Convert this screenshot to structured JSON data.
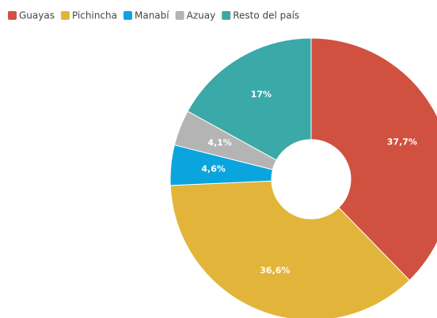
{
  "chart_data": {
    "type": "pie",
    "donut": true,
    "legend": "top-left",
    "categories": [
      "Guayas",
      "Pichincha",
      "Manabí",
      "Azuay",
      "Resto del país"
    ],
    "values": [
      37.7,
      36.6,
      4.6,
      4.1,
      17
    ],
    "value_labels": [
      "37,7%",
      "36,6%",
      "4,6%",
      "4,1%",
      "17%"
    ],
    "colors": [
      "#d0513f",
      "#e2b53a",
      "#0aa5de",
      "#b4b4b4",
      "#3aa9a8"
    ]
  }
}
